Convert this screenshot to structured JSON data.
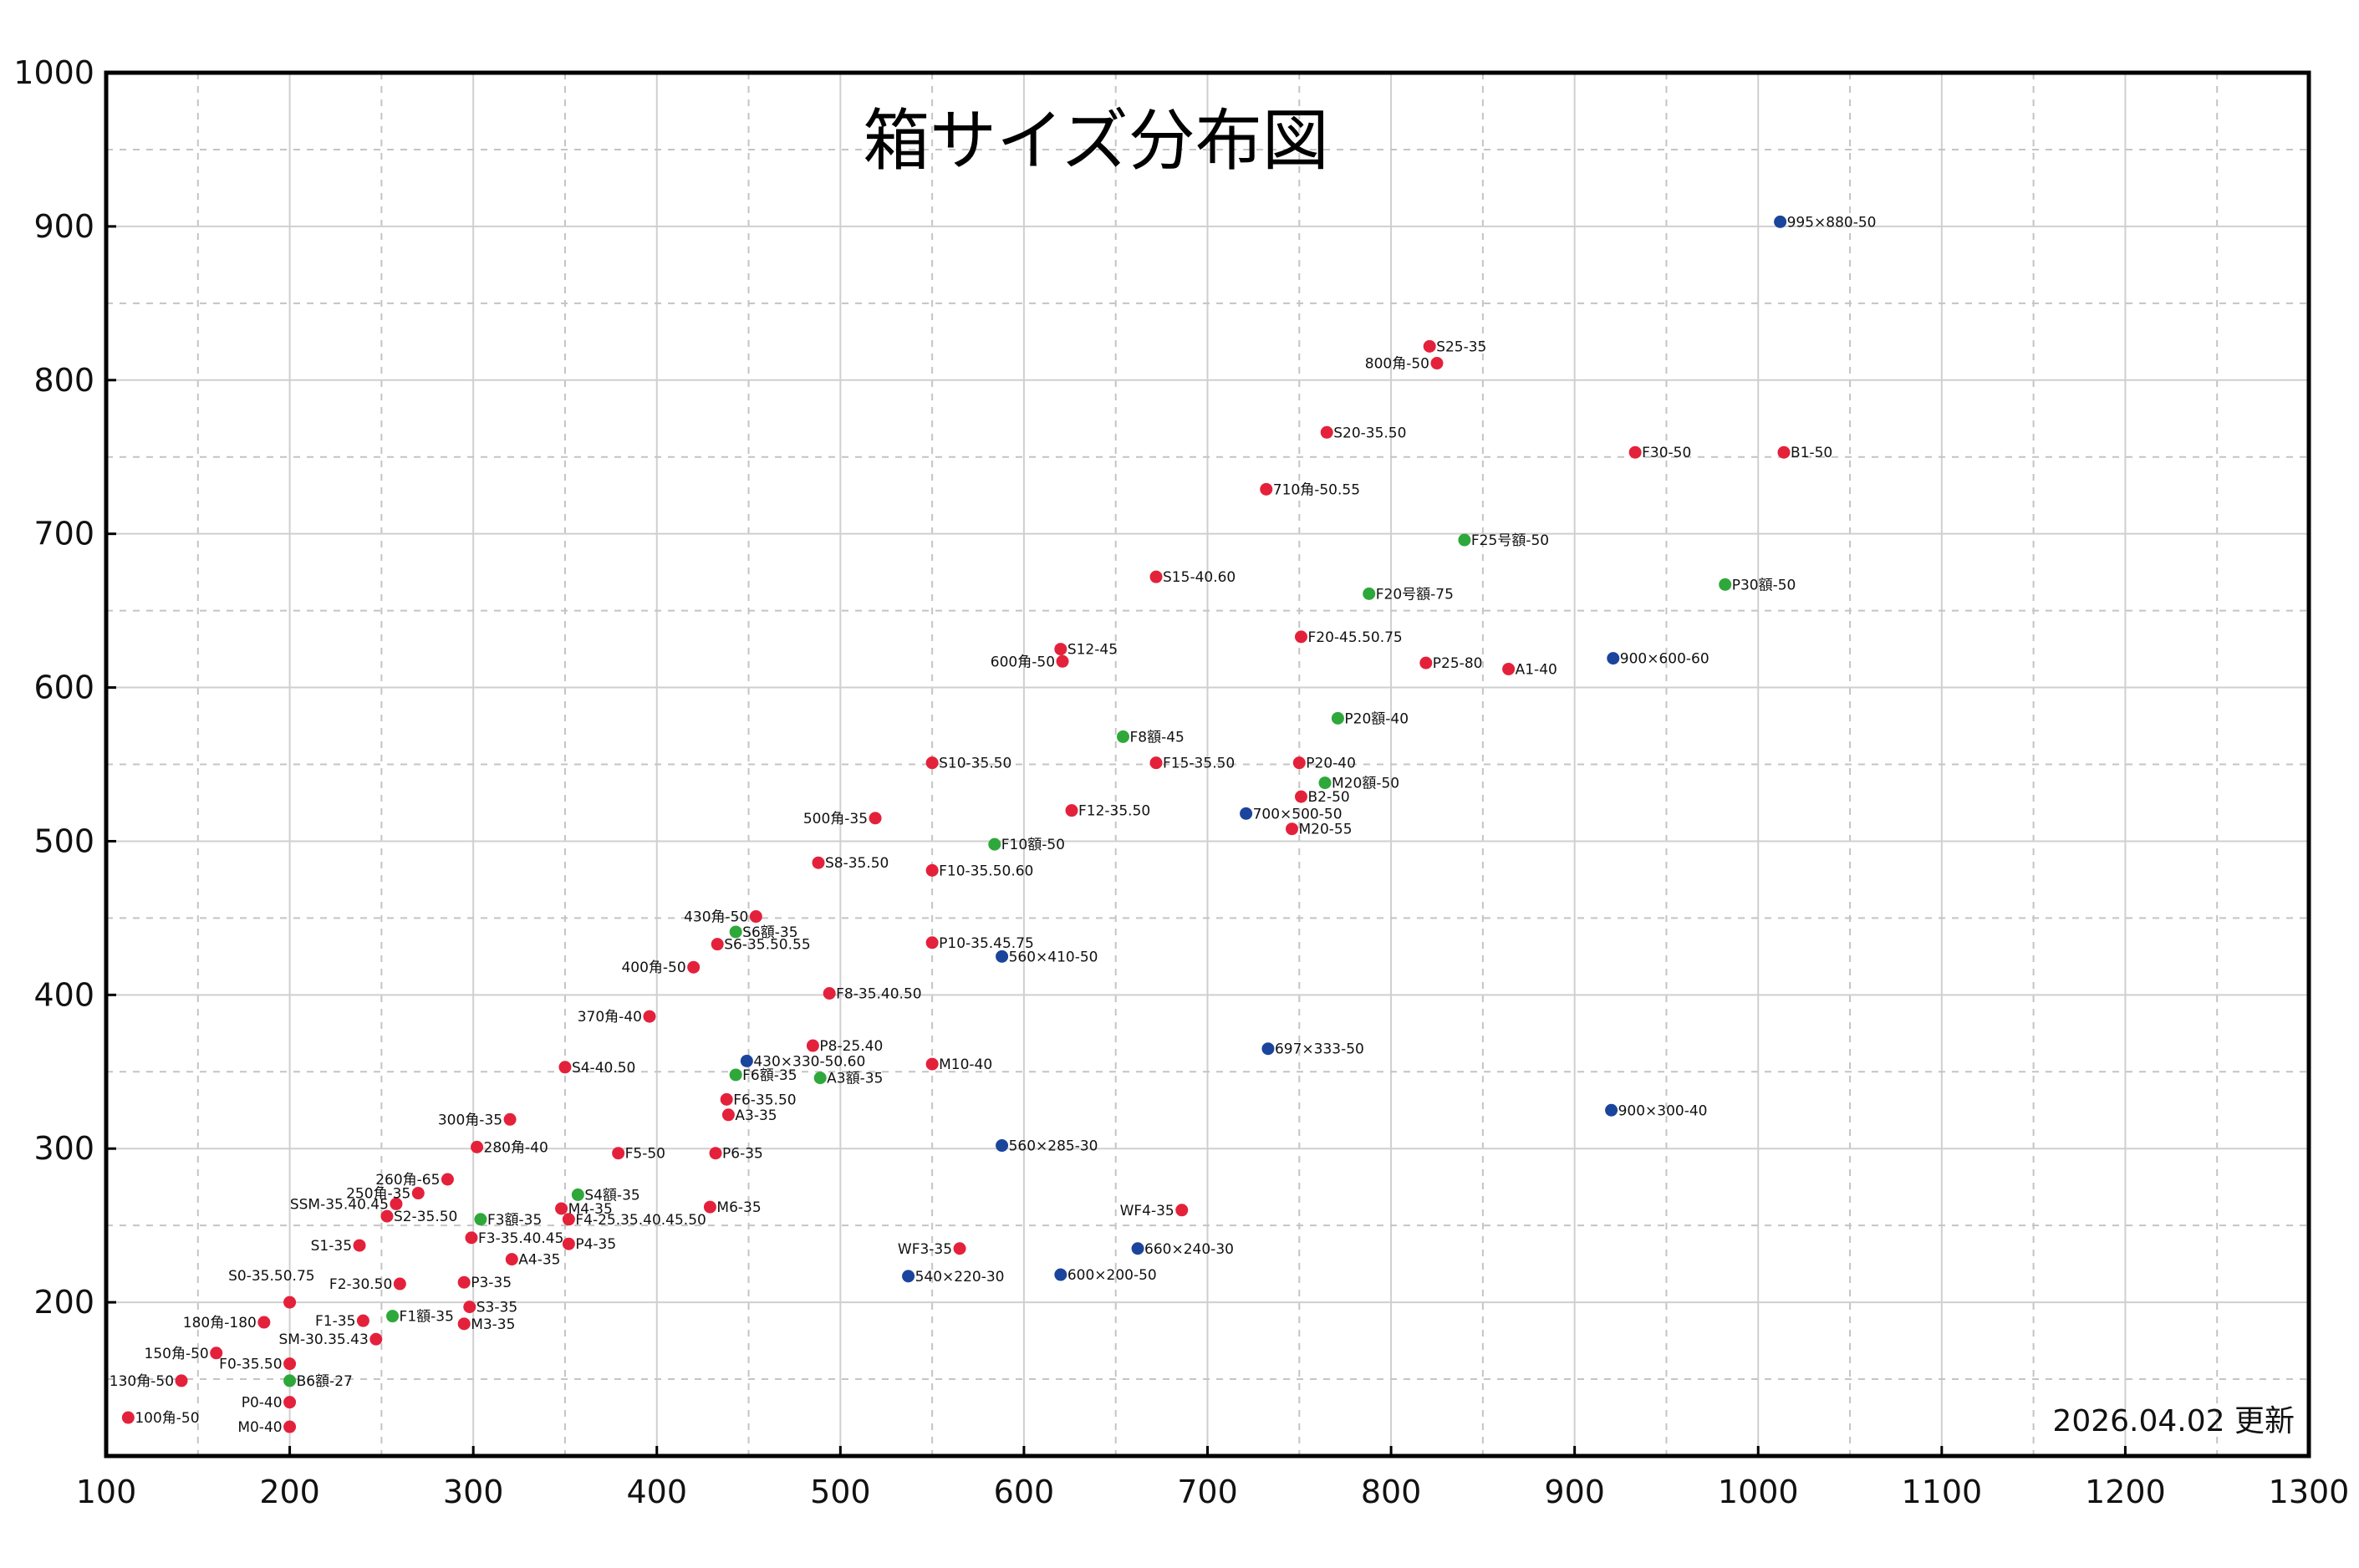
{
  "chart_data": {
    "type": "scatter",
    "title": "箱サイズ分布図",
    "annotation": "2026.04.02 更新",
    "xlabel": "",
    "ylabel": "",
    "xlim": [
      100,
      1300
    ],
    "ylim": [
      100,
      1000
    ],
    "x_ticks": [
      "100",
      "200",
      "300",
      "400",
      "500",
      "600",
      "700",
      "800",
      "900",
      "1000",
      "1100",
      "1200",
      "1300"
    ],
    "y_ticks": [
      "200",
      "300",
      "400",
      "500",
      "600",
      "700",
      "800",
      "900",
      "1000"
    ],
    "grid": true,
    "colors": {
      "red": "#e4213b",
      "green": "#2ea83a",
      "blue": "#1b449c"
    },
    "points": [
      {
        "label": "100角-50",
        "x": 112,
        "y": 125,
        "c": "red",
        "pos": "right"
      },
      {
        "label": "130角-50",
        "x": 141,
        "y": 149,
        "c": "red",
        "pos": "left"
      },
      {
        "label": "150角-50",
        "x": 160,
        "y": 167,
        "c": "red",
        "pos": "left"
      },
      {
        "label": "180角-180",
        "x": 186,
        "y": 187,
        "c": "red",
        "pos": "left"
      },
      {
        "label": "S0-35.50.75",
        "x": 200,
        "y": 200,
        "c": "red",
        "pos": "above"
      },
      {
        "label": "F0-35.50",
        "x": 200,
        "y": 160,
        "c": "red",
        "pos": "left"
      },
      {
        "label": "P0-40",
        "x": 200,
        "y": 135,
        "c": "red",
        "pos": "left"
      },
      {
        "label": "M0-40",
        "x": 200,
        "y": 119,
        "c": "red",
        "pos": "left"
      },
      {
        "label": "F1-35",
        "x": 240,
        "y": 188,
        "c": "red",
        "pos": "left"
      },
      {
        "label": "SM-30.35.43",
        "x": 247,
        "y": 176,
        "c": "red",
        "pos": "left"
      },
      {
        "label": "S1-35",
        "x": 238,
        "y": 237,
        "c": "red",
        "pos": "left"
      },
      {
        "label": "F2-30.50",
        "x": 260,
        "y": 212,
        "c": "red",
        "pos": "left"
      },
      {
        "label": "SSM-35.40.45",
        "x": 258,
        "y": 264,
        "c": "red",
        "pos": "left"
      },
      {
        "label": "S2-35.50",
        "x": 253,
        "y": 256,
        "c": "red",
        "pos": "right"
      },
      {
        "label": "250角-35",
        "x": 270,
        "y": 271,
        "c": "red",
        "pos": "left"
      },
      {
        "label": "260角-65",
        "x": 286,
        "y": 280,
        "c": "red",
        "pos": "left"
      },
      {
        "label": "P3-35",
        "x": 295,
        "y": 213,
        "c": "red",
        "pos": "right"
      },
      {
        "label": "S3-35",
        "x": 298,
        "y": 197,
        "c": "red",
        "pos": "right"
      },
      {
        "label": "M3-35",
        "x": 295,
        "y": 186,
        "c": "red",
        "pos": "right"
      },
      {
        "label": "F3-35.40.45",
        "x": 299,
        "y": 242,
        "c": "red",
        "pos": "right"
      },
      {
        "label": "A4-35",
        "x": 321,
        "y": 228,
        "c": "red",
        "pos": "right"
      },
      {
        "label": "280角-40",
        "x": 302,
        "y": 301,
        "c": "red",
        "pos": "right"
      },
      {
        "label": "300角-35",
        "x": 320,
        "y": 319,
        "c": "red",
        "pos": "left"
      },
      {
        "label": "M4-35",
        "x": 348,
        "y": 261,
        "c": "red",
        "pos": "right"
      },
      {
        "label": "F4-25.35.40.45.50",
        "x": 352,
        "y": 254,
        "c": "red",
        "pos": "right"
      },
      {
        "label": "P4-35",
        "x": 352,
        "y": 238,
        "c": "red",
        "pos": "right"
      },
      {
        "label": "S4-40.50",
        "x": 350,
        "y": 353,
        "c": "red",
        "pos": "right"
      },
      {
        "label": "F5-50",
        "x": 379,
        "y": 297,
        "c": "red",
        "pos": "right"
      },
      {
        "label": "370角-40",
        "x": 396,
        "y": 386,
        "c": "red",
        "pos": "left"
      },
      {
        "label": "400角-50",
        "x": 420,
        "y": 418,
        "c": "red",
        "pos": "left"
      },
      {
        "label": "M6-35",
        "x": 429,
        "y": 262,
        "c": "red",
        "pos": "right"
      },
      {
        "label": "P6-35",
        "x": 432,
        "y": 297,
        "c": "red",
        "pos": "right"
      },
      {
        "label": "A3-35",
        "x": 439,
        "y": 322,
        "c": "red",
        "pos": "right"
      },
      {
        "label": "F6-35.50",
        "x": 438,
        "y": 332,
        "c": "red",
        "pos": "right"
      },
      {
        "label": "S6-35.50.55",
        "x": 433,
        "y": 433,
        "c": "red",
        "pos": "right"
      },
      {
        "label": "430角-50",
        "x": 454,
        "y": 451,
        "c": "red",
        "pos": "left"
      },
      {
        "label": "P8-25.40",
        "x": 485,
        "y": 367,
        "c": "red",
        "pos": "right"
      },
      {
        "label": "F8-35.40.50",
        "x": 494,
        "y": 401,
        "c": "red",
        "pos": "right"
      },
      {
        "label": "S8-35.50",
        "x": 488,
        "y": 486,
        "c": "red",
        "pos": "right"
      },
      {
        "label": "500角-35",
        "x": 519,
        "y": 515,
        "c": "red",
        "pos": "left"
      },
      {
        "label": "S10-35.50",
        "x": 550,
        "y": 551,
        "c": "red",
        "pos": "right"
      },
      {
        "label": "F10-35.50.60",
        "x": 550,
        "y": 481,
        "c": "red",
        "pos": "right"
      },
      {
        "label": "P10-35.45.75",
        "x": 550,
        "y": 434,
        "c": "red",
        "pos": "right"
      },
      {
        "label": "M10-40",
        "x": 550,
        "y": 355,
        "c": "red",
        "pos": "right"
      },
      {
        "label": "WF3-35",
        "x": 565,
        "y": 235,
        "c": "red",
        "pos": "left"
      },
      {
        "label": "S12-45",
        "x": 620,
        "y": 625,
        "c": "red",
        "pos": "right"
      },
      {
        "label": "600角-50",
        "x": 621,
        "y": 617,
        "c": "red",
        "pos": "left"
      },
      {
        "label": "F12-35.50",
        "x": 626,
        "y": 520,
        "c": "red",
        "pos": "right"
      },
      {
        "label": "F15-35.50",
        "x": 672,
        "y": 551,
        "c": "red",
        "pos": "right"
      },
      {
        "label": "S15-40.60",
        "x": 672,
        "y": 672,
        "c": "red",
        "pos": "right"
      },
      {
        "label": "WF4-35",
        "x": 686,
        "y": 260,
        "c": "red",
        "pos": "left"
      },
      {
        "label": "710角-50.55",
        "x": 732,
        "y": 729,
        "c": "red",
        "pos": "right"
      },
      {
        "label": "P20-40",
        "x": 750,
        "y": 551,
        "c": "red",
        "pos": "right"
      },
      {
        "label": "B2-50",
        "x": 751,
        "y": 529,
        "c": "red",
        "pos": "right"
      },
      {
        "label": "M20-55",
        "x": 746,
        "y": 508,
        "c": "red",
        "pos": "right"
      },
      {
        "label": "F20-45.50.75",
        "x": 751,
        "y": 633,
        "c": "red",
        "pos": "right"
      },
      {
        "label": "S20-35.50",
        "x": 765,
        "y": 766,
        "c": "red",
        "pos": "right"
      },
      {
        "label": "S25-35",
        "x": 821,
        "y": 822,
        "c": "red",
        "pos": "right"
      },
      {
        "label": "800角-50",
        "x": 825,
        "y": 811,
        "c": "red",
        "pos": "left"
      },
      {
        "label": "P25-80",
        "x": 819,
        "y": 616,
        "c": "red",
        "pos": "right"
      },
      {
        "label": "A1-40",
        "x": 864,
        "y": 612,
        "c": "red",
        "pos": "right"
      },
      {
        "label": "F30-50",
        "x": 933,
        "y": 753,
        "c": "red",
        "pos": "right"
      },
      {
        "label": "B1-50",
        "x": 1014,
        "y": 753,
        "c": "red",
        "pos": "right"
      },
      {
        "label": "B6額-27",
        "x": 200,
        "y": 149,
        "c": "green",
        "pos": "right"
      },
      {
        "label": "F1額-35",
        "x": 256,
        "y": 191,
        "c": "green",
        "pos": "right"
      },
      {
        "label": "F3額-35",
        "x": 304,
        "y": 254,
        "c": "green",
        "pos": "right"
      },
      {
        "label": "S4額-35",
        "x": 357,
        "y": 270,
        "c": "green",
        "pos": "right"
      },
      {
        "label": "F6額-35",
        "x": 443,
        "y": 348,
        "c": "green",
        "pos": "right"
      },
      {
        "label": "A3額-35",
        "x": 489,
        "y": 346,
        "c": "green",
        "pos": "right"
      },
      {
        "label": "S6額-35",
        "x": 443,
        "y": 441,
        "c": "green",
        "pos": "right"
      },
      {
        "label": "F10額-50",
        "x": 584,
        "y": 498,
        "c": "green",
        "pos": "right"
      },
      {
        "label": "F8額-45",
        "x": 654,
        "y": 568,
        "c": "green",
        "pos": "right"
      },
      {
        "label": "P20額-40",
        "x": 771,
        "y": 580,
        "c": "green",
        "pos": "right"
      },
      {
        "label": "M20額-50",
        "x": 764,
        "y": 538,
        "c": "green",
        "pos": "right"
      },
      {
        "label": "F20号額-75",
        "x": 788,
        "y": 661,
        "c": "green",
        "pos": "right"
      },
      {
        "label": "F25号額-50",
        "x": 840,
        "y": 696,
        "c": "green",
        "pos": "right"
      },
      {
        "label": "P30額-50",
        "x": 982,
        "y": 667,
        "c": "green",
        "pos": "right"
      },
      {
        "label": "430×330-50.60",
        "x": 449,
        "y": 357,
        "c": "blue",
        "pos": "right"
      },
      {
        "label": "560×410-50",
        "x": 588,
        "y": 425,
        "c": "blue",
        "pos": "right"
      },
      {
        "label": "560×285-30",
        "x": 588,
        "y": 302,
        "c": "blue",
        "pos": "right"
      },
      {
        "label": "540×220-30",
        "x": 537,
        "y": 217,
        "c": "blue",
        "pos": "right"
      },
      {
        "label": "600×200-50",
        "x": 620,
        "y": 218,
        "c": "blue",
        "pos": "right"
      },
      {
        "label": "660×240-30",
        "x": 662,
        "y": 235,
        "c": "blue",
        "pos": "right"
      },
      {
        "label": "697×333-50",
        "x": 733,
        "y": 365,
        "c": "blue",
        "pos": "right"
      },
      {
        "label": "700×500-50",
        "x": 721,
        "y": 518,
        "c": "blue",
        "pos": "right"
      },
      {
        "label": "900×600-60",
        "x": 921,
        "y": 619,
        "c": "blue",
        "pos": "right"
      },
      {
        "label": "900×300-40",
        "x": 920,
        "y": 325,
        "c": "blue",
        "pos": "right"
      },
      {
        "label": "995×880-50",
        "x": 1012,
        "y": 903,
        "c": "blue",
        "pos": "right"
      }
    ]
  }
}
